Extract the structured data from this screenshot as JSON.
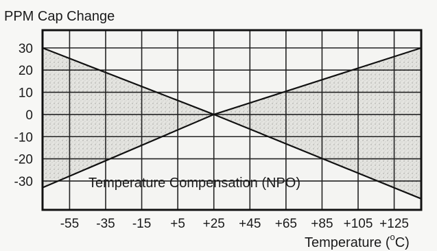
{
  "chart_data": {
    "type": "area",
    "title": "PPM Cap Change",
    "xlabel": "Temperature (°C)",
    "xlabel_parts": {
      "text": "Temperature (",
      "sup": "o",
      "unit": "C)"
    },
    "ylabel": "",
    "annotation": "Temperature Compensation (NPO)",
    "x_ticks": [
      "-55",
      "-35",
      "-15",
      "+5",
      "+25",
      "+45",
      "+65",
      "+85",
      "+105",
      "+125"
    ],
    "y_ticks": [
      "30",
      "20",
      "10",
      "0",
      "-10",
      "-20",
      "-30"
    ],
    "xlim": [
      -70,
      140
    ],
    "ylim": [
      -43,
      38
    ],
    "grid": true,
    "series": [
      {
        "x": [
          -70,
          25,
          140
        ],
        "y": [
          30,
          0,
          30
        ],
        "values": [
          30,
          0,
          30
        ]
      },
      {
        "x": [
          -70,
          25,
          140
        ],
        "y": [
          -33,
          0,
          -38
        ],
        "values": [
          -33,
          0,
          -38
        ]
      }
    ],
    "fill_color": "#dcdcd8",
    "line_color": "#111111"
  }
}
